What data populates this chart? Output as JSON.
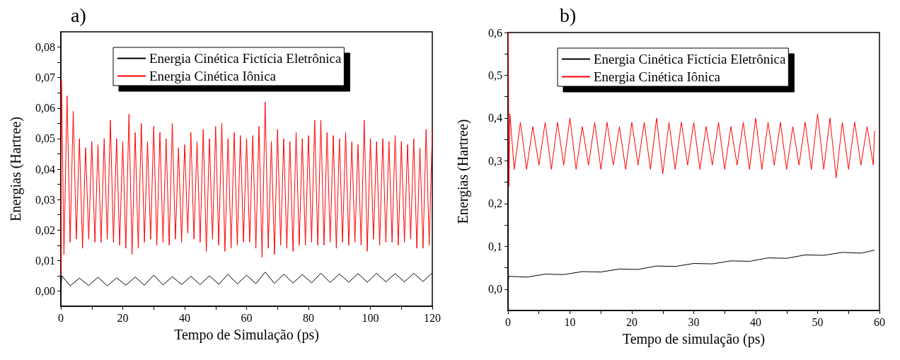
{
  "chart_data": [
    {
      "type": "line",
      "title": "a)",
      "xlabel": "Tempo de Simulação (ps)",
      "ylabel": "Energias (Hartree)",
      "legend": "top",
      "marker": "none",
      "xlim": [
        0,
        120
      ],
      "xticks": [
        0,
        {
          "value": 10,
          "label": null
        },
        20,
        {
          "value": 30,
          "label": null
        },
        40,
        {
          "value": 50,
          "label": null
        },
        60,
        {
          "value": 70,
          "label": null
        },
        80,
        {
          "value": 90,
          "label": null
        },
        100,
        {
          "value": 110,
          "label": null
        },
        120
      ],
      "ylim": [
        -0.005,
        0.085
      ],
      "yticks": [
        {
          "value": 0,
          "label": "0,00"
        },
        {
          "value": 0.005,
          "label": null
        },
        {
          "value": 0.01,
          "label": "0,01"
        },
        {
          "value": 0.015,
          "label": null
        },
        {
          "value": 0.02,
          "label": "0,02"
        },
        {
          "value": 0.025,
          "label": null
        },
        {
          "value": 0.03,
          "label": "0,03"
        },
        {
          "value": 0.035,
          "label": null
        },
        {
          "value": 0.04,
          "label": "0,04"
        },
        {
          "value": 0.045,
          "label": null
        },
        {
          "value": 0.05,
          "label": "0,05"
        },
        {
          "value": 0.055,
          "label": null
        },
        {
          "value": 0.06,
          "label": "0,06"
        },
        {
          "value": 0.065,
          "label": null
        },
        {
          "value": 0.07,
          "label": "0,07"
        },
        {
          "value": 0.075,
          "label": null
        },
        {
          "value": 0.08,
          "label": "0,08"
        }
      ],
      "series": [
        {
          "name": "Energia Cinética Fictícia Eletrônica",
          "color": "#000000",
          "x": [
            0,
            0.3,
            3,
            6,
            9,
            12,
            15,
            18,
            21,
            24,
            27,
            30,
            33,
            36,
            39,
            42,
            45,
            48,
            51,
            54,
            57,
            60,
            63,
            66,
            69,
            72,
            75,
            78,
            81,
            84,
            87,
            90,
            93,
            96,
            99,
            102,
            105,
            108,
            111,
            114,
            117,
            120
          ],
          "values": [
            0.0005,
            0.005,
            0.0017,
            0.0042,
            0.0018,
            0.0045,
            0.0017,
            0.0043,
            0.0019,
            0.0046,
            0.0019,
            0.0052,
            0.002,
            0.0047,
            0.0021,
            0.0048,
            0.0021,
            0.005,
            0.0022,
            0.0055,
            0.0023,
            0.0052,
            0.0024,
            0.0062,
            0.0025,
            0.0055,
            0.0026,
            0.0054,
            0.0027,
            0.0058,
            0.0028,
            0.0056,
            0.0029,
            0.0057,
            0.0029,
            0.0058,
            0.003,
            0.0057,
            0.003,
            0.0058,
            0.0031,
            0.006
          ]
        },
        {
          "name": "Energia Cinética Iônica",
          "color": "#ff0000",
          "x": [
            0,
            0.2,
            1,
            2,
            3,
            4,
            5,
            6,
            7,
            8,
            9,
            10,
            11,
            12,
            13,
            14,
            15,
            16,
            17,
            18,
            19,
            20,
            21,
            22,
            23,
            24,
            25,
            26,
            27,
            28,
            29,
            30,
            31,
            32,
            33,
            34,
            35,
            36,
            37,
            38,
            39,
            40,
            41,
            42,
            43,
            44,
            45,
            46,
            47,
            48,
            49,
            50,
            51,
            52,
            53,
            54,
            55,
            56,
            57,
            58,
            59,
            60,
            61,
            62,
            63,
            64,
            65,
            66,
            67,
            68,
            69,
            70,
            71,
            72,
            73,
            74,
            75,
            76,
            77,
            78,
            79,
            80,
            81,
            82,
            83,
            84,
            85,
            86,
            87,
            88,
            89,
            90,
            91,
            92,
            93,
            94,
            95,
            96,
            97,
            98,
            99,
            100,
            101,
            102,
            103,
            104,
            105,
            106,
            107,
            108,
            109,
            110,
            111,
            112,
            113,
            114,
            115,
            116,
            117,
            118,
            119,
            120
          ],
          "values": [
            0.005,
            0.069,
            0.012,
            0.064,
            0.016,
            0.059,
            0.017,
            0.05,
            0.014,
            0.047,
            0.017,
            0.049,
            0.016,
            0.048,
            0.016,
            0.05,
            0.017,
            0.056,
            0.016,
            0.05,
            0.015,
            0.049,
            0.014,
            0.058,
            0.012,
            0.052,
            0.014,
            0.055,
            0.016,
            0.049,
            0.017,
            0.054,
            0.015,
            0.052,
            0.016,
            0.05,
            0.015,
            0.055,
            0.017,
            0.047,
            0.016,
            0.048,
            0.019,
            0.052,
            0.017,
            0.049,
            0.016,
            0.053,
            0.013,
            0.05,
            0.017,
            0.054,
            0.015,
            0.055,
            0.013,
            0.05,
            0.014,
            0.052,
            0.015,
            0.051,
            0.016,
            0.05,
            0.016,
            0.051,
            0.014,
            0.054,
            0.011,
            0.062,
            0.014,
            0.049,
            0.012,
            0.053,
            0.015,
            0.05,
            0.014,
            0.049,
            0.013,
            0.052,
            0.015,
            0.05,
            0.015,
            0.051,
            0.016,
            0.056,
            0.015,
            0.056,
            0.015,
            0.052,
            0.016,
            0.051,
            0.014,
            0.05,
            0.016,
            0.052,
            0.015,
            0.049,
            0.016,
            0.048,
            0.015,
            0.056,
            0.013,
            0.05,
            0.017,
            0.049,
            0.015,
            0.05,
            0.016,
            0.049,
            0.016,
            0.051,
            0.015,
            0.049,
            0.016,
            0.048,
            0.017,
            0.05,
            0.014,
            0.047,
            0.014,
            0.053,
            0.015,
            0.053
          ]
        }
      ]
    },
    {
      "type": "line",
      "title": "b)",
      "xlabel": "Tempo de simulação (ps)",
      "ylabel": "Energias (Hartree)",
      "legend": "top",
      "marker": "none",
      "xlim": [
        0,
        60
      ],
      "xticks": [
        0,
        {
          "value": 5,
          "label": null
        },
        10,
        {
          "value": 15,
          "label": null
        },
        20,
        {
          "value": 25,
          "label": null
        },
        30,
        {
          "value": 35,
          "label": null
        },
        40,
        {
          "value": 45,
          "label": null
        },
        50,
        {
          "value": 55,
          "label": null
        },
        60
      ],
      "ylim": [
        -0.05,
        0.6
      ],
      "yticks": [
        {
          "value": 0,
          "label": "0,0"
        },
        {
          "value": 0.05,
          "label": null
        },
        {
          "value": 0.1,
          "label": "0,1"
        },
        {
          "value": 0.15,
          "label": null
        },
        {
          "value": 0.2,
          "label": "0,2"
        },
        {
          "value": 0.25,
          "label": null
        },
        {
          "value": 0.3,
          "label": "0,3"
        },
        {
          "value": 0.35,
          "label": null
        },
        {
          "value": 0.4,
          "label": "0,4"
        },
        {
          "value": 0.45,
          "label": null
        },
        {
          "value": 0.5,
          "label": "0,5"
        },
        {
          "value": 0.55,
          "label": null
        },
        {
          "value": 0.6,
          "label": "0,6"
        }
      ],
      "series": [
        {
          "name": "Energia Cinética Fictícia Eletrônica",
          "color": "#000000",
          "x": [
            0,
            0.1,
            3,
            6,
            9,
            12,
            15,
            18,
            21,
            24,
            27,
            30,
            33,
            36,
            39,
            42,
            45,
            48,
            51,
            54,
            57,
            59.2
          ],
          "values": [
            0,
            0.03,
            0.028,
            0.035,
            0.034,
            0.041,
            0.04,
            0.047,
            0.046,
            0.054,
            0.053,
            0.06,
            0.059,
            0.066,
            0.065,
            0.073,
            0.072,
            0.08,
            0.079,
            0.086,
            0.084,
            0.091
          ]
        },
        {
          "name": "Energia Cinética Iônica",
          "color": "#ff0000",
          "x": [
            0.05,
            0.15,
            0.3,
            1,
            2,
            3,
            4,
            5,
            6,
            7,
            8,
            9,
            10,
            11,
            12,
            13,
            14,
            15,
            16,
            17,
            18,
            19,
            20,
            21,
            22,
            23,
            24,
            25,
            26,
            27,
            28,
            29,
            30,
            31,
            32,
            33,
            34,
            35,
            36,
            37,
            38,
            39,
            40,
            41,
            42,
            43,
            44,
            45,
            46,
            47,
            48,
            49,
            50,
            51,
            52,
            53,
            54,
            55,
            56,
            57,
            58,
            59,
            59.2
          ],
          "values": [
            0.6,
            0.24,
            0.41,
            0.28,
            0.39,
            0.28,
            0.38,
            0.29,
            0.39,
            0.28,
            0.39,
            0.29,
            0.4,
            0.28,
            0.38,
            0.29,
            0.39,
            0.28,
            0.39,
            0.29,
            0.38,
            0.28,
            0.39,
            0.29,
            0.39,
            0.28,
            0.4,
            0.27,
            0.39,
            0.28,
            0.39,
            0.29,
            0.39,
            0.28,
            0.38,
            0.29,
            0.39,
            0.28,
            0.38,
            0.29,
            0.39,
            0.28,
            0.4,
            0.28,
            0.39,
            0.29,
            0.39,
            0.28,
            0.38,
            0.29,
            0.39,
            0.28,
            0.41,
            0.28,
            0.4,
            0.26,
            0.39,
            0.28,
            0.39,
            0.29,
            0.38,
            0.29,
            0.37
          ]
        }
      ]
    }
  ]
}
